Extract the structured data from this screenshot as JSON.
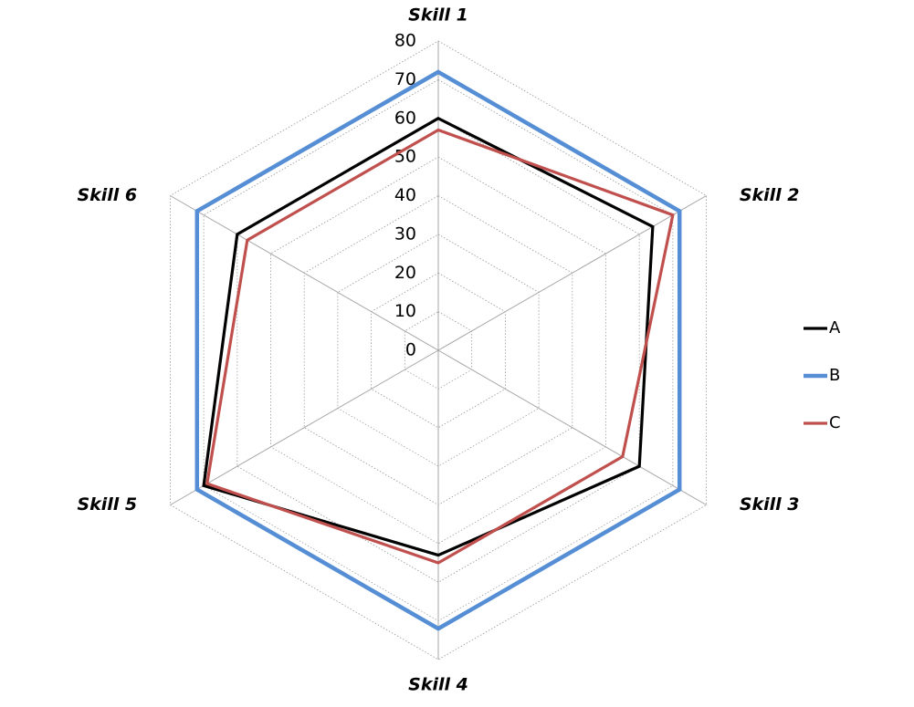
{
  "chart_data": {
    "type": "radar",
    "categories": [
      "Skill 1",
      "Skill 2",
      "Skill 3",
      "Skill 4",
      "Skill 5",
      "Skill 6"
    ],
    "series": [
      {
        "name": "A",
        "color": "#000000",
        "values": [
          60,
          64,
          60,
          53,
          70,
          60
        ]
      },
      {
        "name": "B",
        "color": "#558ed5",
        "values": [
          72,
          72,
          72,
          72,
          72,
          72
        ]
      },
      {
        "name": "C",
        "color": "#c0504d",
        "values": [
          57,
          70,
          55,
          55,
          69,
          57
        ]
      }
    ],
    "ylim": [
      0,
      80
    ],
    "yticks": [
      0,
      10,
      20,
      30,
      40,
      50,
      60,
      70,
      80
    ],
    "grid": true,
    "legend": "right"
  }
}
